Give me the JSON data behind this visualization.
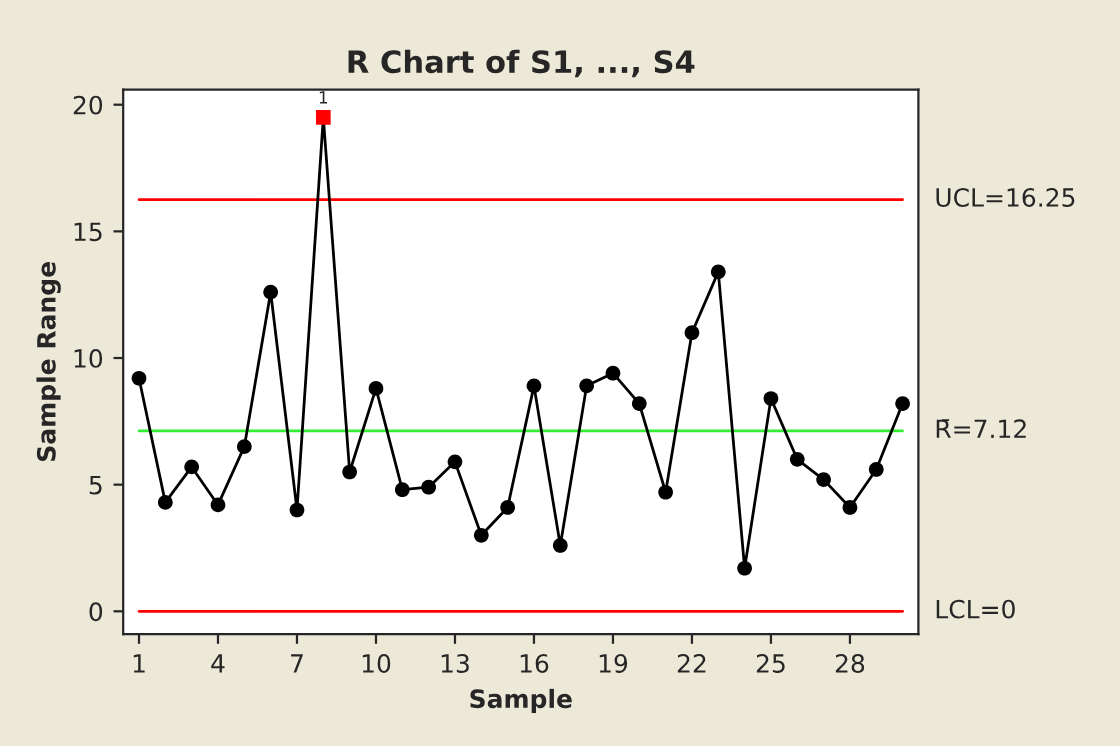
{
  "chart_data": {
    "type": "line",
    "title": "R Chart of S1, ..., S4",
    "xlabel": "Sample",
    "ylabel": "Sample Range",
    "x": [
      1,
      2,
      3,
      4,
      5,
      6,
      7,
      8,
      9,
      10,
      11,
      12,
      13,
      14,
      15,
      16,
      17,
      18,
      19,
      20,
      21,
      22,
      23,
      24,
      25,
      26,
      27,
      28,
      29,
      30
    ],
    "series": [
      {
        "color": "#000000",
        "marker": "none",
        "values": [
          9.2,
          4.3,
          5.7,
          4.2,
          6.5,
          12.6,
          4.0,
          19.5,
          5.5,
          8.8,
          4.8,
          4.9,
          5.9,
          3.0,
          4.1,
          8.9,
          2.6,
          8.9,
          9.4,
          8.2,
          4.7,
          11.0,
          13.4,
          1.7,
          8.4,
          6.0,
          5.2,
          4.1,
          5.6,
          8.2
        ]
      },
      {
        "type": "scatter",
        "color": "#000000",
        "marker": "circle",
        "values": [
          9.2,
          4.3,
          5.7,
          4.2,
          6.5,
          12.6,
          4.0,
          null,
          5.5,
          8.8,
          4.8,
          4.9,
          5.9,
          3.0,
          4.1,
          8.9,
          2.6,
          8.9,
          9.4,
          8.2,
          4.7,
          11.0,
          13.4,
          1.7,
          8.4,
          6.0,
          5.2,
          4.1,
          5.6,
          8.2
        ]
      },
      {
        "type": "scatter",
        "color": "#ff0000",
        "marker": "square",
        "x": [
          8
        ],
        "values": [
          19.5
        ]
      }
    ],
    "ref_lines": [
      {
        "axis": "y",
        "value": 16.25,
        "label": "UCL=16.25",
        "color": "#ff0000"
      },
      {
        "axis": "y",
        "value": 7.12,
        "label": "R̄=7.12",
        "color": "#33ee33"
      },
      {
        "axis": "y",
        "value": 0,
        "label": "LCL=0",
        "color": "#ff0000"
      }
    ],
    "annotations": [
      {
        "text": "1",
        "x": 8,
        "y": 19.5
      }
    ],
    "xlim": [
      0.4,
      30.6
    ],
    "ylim": [
      -0.9,
      20.6
    ],
    "xticks": [
      1,
      4,
      7,
      10,
      13,
      16,
      19,
      22,
      25,
      28
    ],
    "yticks": [
      0,
      5,
      10,
      15,
      20
    ],
    "grid": false
  }
}
